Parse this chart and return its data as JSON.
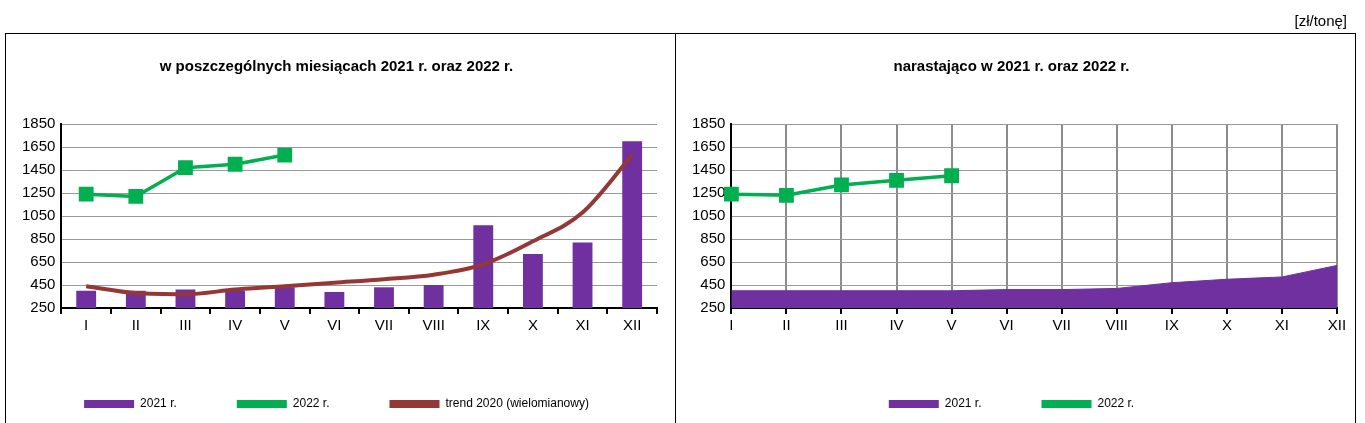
{
  "chart_data": [
    {
      "type": "bar",
      "title": "w poszczególnych miesiącach 2021 r. oraz 2022 r.",
      "categories": [
        "I",
        "II",
        "III",
        "IV",
        "V",
        "VI",
        "VII",
        "VIII",
        "IX",
        "X",
        "XI",
        "XII"
      ],
      "ylim": [
        250,
        1850
      ],
      "yticks": [
        250,
        450,
        650,
        850,
        1050,
        1250,
        1450,
        1650,
        1850
      ],
      "grid": "y",
      "legend": "bottom",
      "series": [
        {
          "name": "2021 r.",
          "color": "#7030a0",
          "values": [
            400,
            400,
            410,
            400,
            430,
            390,
            430,
            450,
            970,
            720,
            820,
            1700
          ]
        },
        {
          "name": "2022 r.",
          "type": "line",
          "marker": "square",
          "color": "#00b050",
          "values": [
            1240,
            1220,
            1470,
            1500,
            1580,
            null,
            null,
            null,
            null,
            null,
            null,
            null
          ]
        },
        {
          "name": "trend 2020 (wielomianowy)",
          "type": "line",
          "marker": "none",
          "color": "#953735",
          "values": [
            440,
            380,
            370,
            410,
            440,
            470,
            500,
            540,
            630,
            830,
            1080,
            1580
          ]
        }
      ]
    },
    {
      "type": "area",
      "title": "narastająco w 2021 r. oraz 2022 r.",
      "annotations": [
        "[zł/tonę]"
      ],
      "categories": [
        "I",
        "II",
        "III",
        "IV",
        "V",
        "VI",
        "VII",
        "VIII",
        "IX",
        "X",
        "XI",
        "XII"
      ],
      "ylim": [
        250,
        1850
      ],
      "yticks": [
        250,
        450,
        650,
        850,
        1050,
        1250,
        1450,
        1650,
        1850
      ],
      "grid": true,
      "legend": "bottom",
      "series": [
        {
          "name": "2021 r.",
          "color": "#7030a0",
          "values": [
            400,
            400,
            400,
            400,
            400,
            410,
            410,
            420,
            470,
            500,
            520,
            620
          ]
        },
        {
          "name": "2022 r.",
          "type": "line",
          "marker": "square",
          "color": "#00b050",
          "values": [
            1240,
            1230,
            1320,
            1360,
            1400,
            null,
            null,
            null,
            null,
            null,
            null,
            null
          ]
        }
      ]
    }
  ]
}
